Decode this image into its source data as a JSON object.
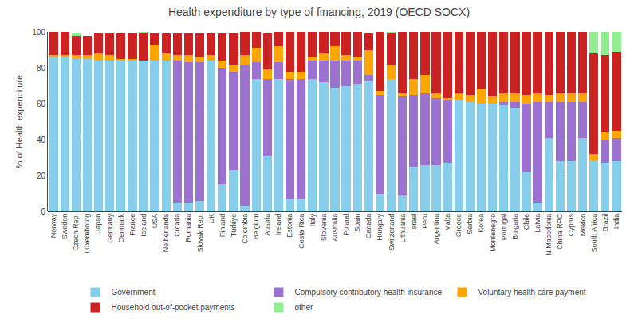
{
  "chart_data": {
    "type": "bar",
    "title": "Health expenditure by type of financing, 2019 (OECD SOCX)",
    "ylabel": "% of Health expenditure",
    "stacked": true,
    "grid": true,
    "legend": "bottom",
    "ylim": [
      0,
      100
    ],
    "yticks": [
      0,
      20,
      40,
      60,
      80,
      100
    ],
    "categories": [
      "Norway",
      "Sweden",
      "Czech Rep.",
      "Luxembourg",
      "Japan",
      "Germany",
      "Denmark",
      "France",
      "Iceland",
      "USA",
      "Netherlands",
      "Croatia",
      "Romania",
      "Slovak Rep.",
      "UK",
      "Finland",
      "Türkiye",
      "Colombia",
      "Belgium",
      "Austria",
      "Ireland",
      "Estonia",
      "Costa Rica",
      "Italy",
      "Slovenia",
      "Australia",
      "Poland",
      "Spain",
      "Canada",
      "Hungary",
      "Switzerland",
      "Lithuania",
      "Israel",
      "Peru",
      "Argentina",
      "Malta",
      "Greece",
      "Serbia",
      "Korea",
      "Montenegro",
      "Portugal",
      "Bulgaria",
      "Chile",
      "Latvia",
      "N.Macedonia",
      "China RPC",
      "Cyprus",
      "Mexico",
      "South Africa",
      "Brazil",
      "India"
    ],
    "series": [
      {
        "name": "Government",
        "color": "#87CEEB",
        "values": [
          86,
          86,
          85,
          85,
          84,
          84,
          84,
          84,
          84,
          84,
          84,
          5,
          5,
          6,
          84,
          15,
          23,
          3,
          74,
          31,
          74,
          7,
          7,
          74,
          72,
          69,
          70,
          71,
          73,
          10,
          74,
          9,
          25,
          26,
          26,
          27,
          62,
          61,
          60,
          60,
          59,
          58,
          22,
          5,
          41,
          28,
          28,
          41,
          28,
          27,
          28
        ]
      },
      {
        "name": "Compulsory contributory health insurance",
        "color": "#9B72CF",
        "values": [
          0,
          0,
          0,
          0,
          0,
          0,
          0,
          0,
          0,
          0,
          0,
          79,
          78,
          77,
          0,
          65,
          55,
          79,
          9,
          43,
          9,
          67,
          67,
          10,
          12,
          15,
          14,
          13,
          3,
          55,
          0,
          55,
          40,
          40,
          37,
          35,
          0,
          0,
          0,
          0,
          2,
          3,
          38,
          56,
          20,
          33,
          33,
          20,
          0,
          13,
          13
        ]
      },
      {
        "name": "Voluntary health care payment",
        "color": "#FFA500",
        "values": [
          1,
          1,
          2,
          2,
          4,
          3,
          1,
          1,
          0,
          9,
          4,
          3,
          4,
          3,
          3,
          4,
          4,
          5,
          8,
          5,
          9,
          4,
          4,
          2,
          4,
          8,
          3,
          2,
          14,
          2,
          8,
          2,
          9,
          10,
          3,
          1,
          4,
          4,
          8,
          4,
          5,
          5,
          5,
          5,
          4,
          5,
          5,
          5,
          4,
          4,
          4
        ]
      },
      {
        "name": "Household out-of-pocket payments",
        "color": "#CC2222",
        "values": [
          13,
          13,
          11,
          11,
          11,
          12,
          14,
          14,
          15,
          6,
          11,
          12,
          12,
          13,
          12,
          15,
          17,
          13,
          9,
          20,
          8,
          22,
          22,
          14,
          12,
          8,
          13,
          14,
          9,
          33,
          17,
          34,
          26,
          24,
          34,
          37,
          34,
          35,
          32,
          36,
          34,
          34,
          35,
          34,
          35,
          34,
          34,
          34,
          56,
          43,
          44
        ]
      },
      {
        "name": "other",
        "color": "#90EE90",
        "values": [
          0,
          0,
          1,
          0,
          0,
          0,
          0,
          0,
          1,
          0,
          0,
          0,
          0,
          0,
          0,
          0,
          0,
          0,
          0,
          0,
          0,
          0,
          0,
          0,
          0,
          0,
          0,
          0,
          0,
          0,
          1,
          0,
          0,
          0,
          0,
          0,
          0,
          0,
          0,
          0,
          0,
          0,
          0,
          0,
          0,
          0,
          0,
          0,
          12,
          13,
          11
        ]
      }
    ]
  }
}
